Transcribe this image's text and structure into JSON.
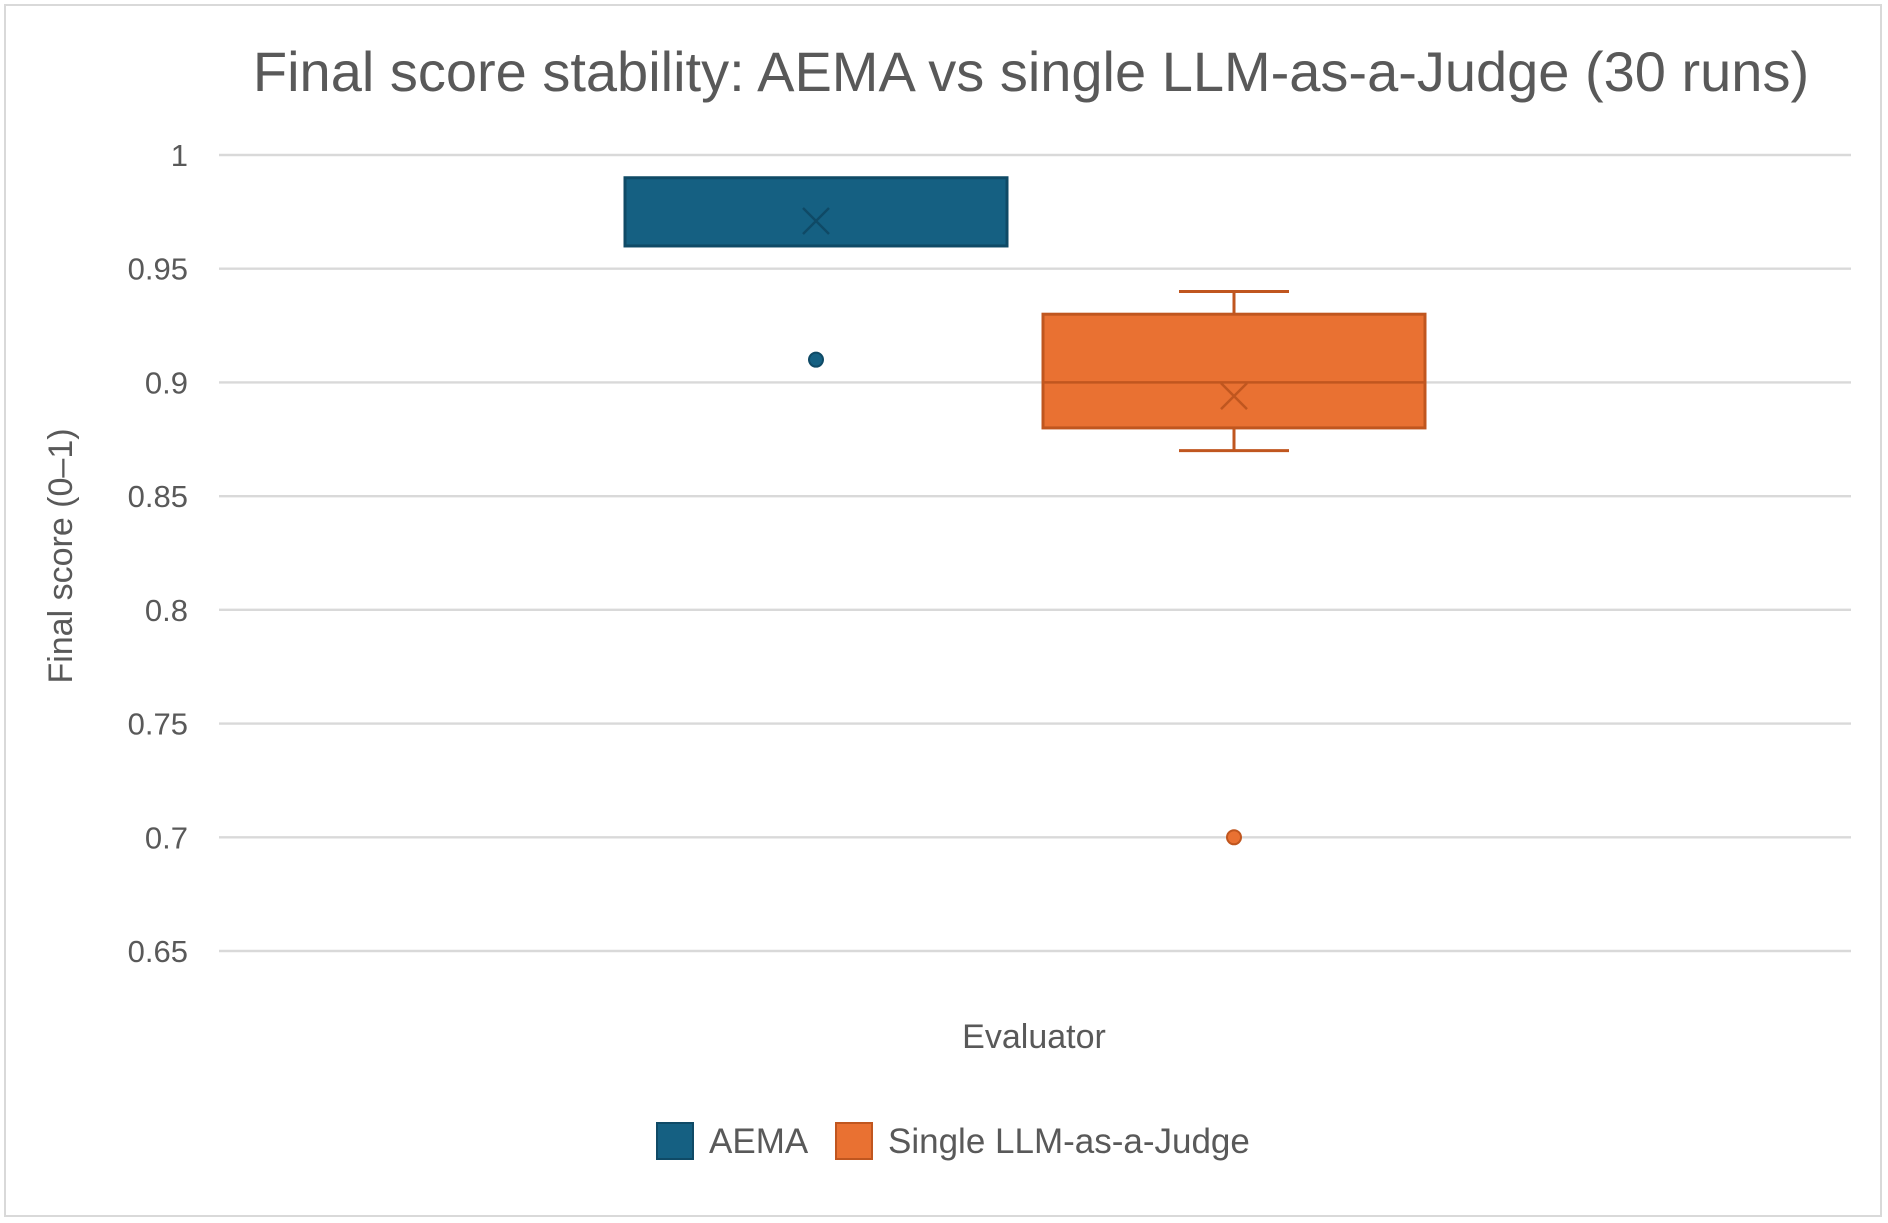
{
  "chart_data": {
    "type": "boxplot",
    "title": "Final score stability: AEMA vs single LLM-as-a-Judge (30 runs)",
    "xlabel": "Evaluator",
    "ylabel": "Final score (0–1)",
    "ylim": [
      0.65,
      1.0
    ],
    "yticks": [
      1,
      0.95,
      0.9,
      0.85,
      0.8,
      0.75,
      0.7,
      0.65
    ],
    "ytick_labels": [
      "1",
      "0.95",
      "0.9",
      "0.85",
      "0.8",
      "0.75",
      "0.7",
      "0.65"
    ],
    "grid": true,
    "legend_position": "bottom",
    "series": [
      {
        "name": "AEMA",
        "color": "#156082",
        "min": 0.96,
        "q1": 0.96,
        "median": 0.99,
        "q3": 0.99,
        "max": 0.99,
        "mean": 0.971,
        "outliers": [
          0.91
        ]
      },
      {
        "name": "Single LLM-as-a-Judge",
        "color": "#E97132",
        "min": 0.87,
        "q1": 0.88,
        "median": 0.9,
        "q3": 0.93,
        "max": 0.94,
        "mean": 0.894,
        "outliers": [
          0.7
        ]
      }
    ]
  }
}
